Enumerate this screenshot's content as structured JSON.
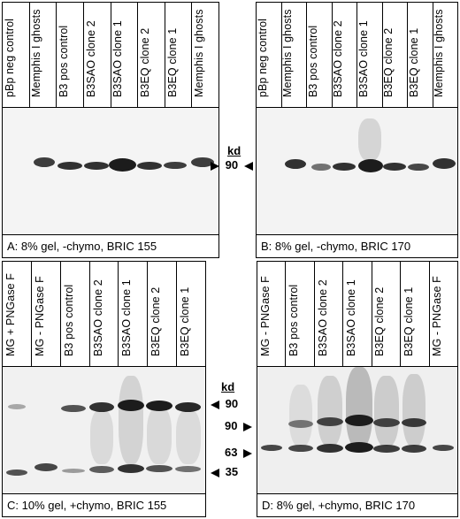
{
  "panels": {
    "A": {
      "caption": "A: 8% gel, -chymo, BRIC 155",
      "lanes": [
        "pBp neg control",
        "Memphis I ghosts",
        "B3 pos control",
        "B3SAO clone 2",
        "B3SAO clone 1",
        "B3EQ clone 2",
        "B3EQ clone 1",
        "Memphis I ghosts"
      ]
    },
    "B": {
      "caption": "B: 8% gel, -chymo, BRIC 170",
      "lanes": [
        "pBp neg control",
        "Memphis I ghosts",
        "B3 pos control",
        "B3SAO clone 2",
        "B3SAO clone 1",
        "B3EQ clone 2",
        "B3EQ clone 1",
        "Memphis I ghosts"
      ]
    },
    "C": {
      "caption": "C: 10% gel, +chymo, BRIC 155",
      "lanes": [
        "MG + PNGase F",
        "MG - PNGase F",
        "B3 pos control",
        "B3SAO clone 2",
        "B3SAO clone 1",
        "B3EQ clone 2",
        "B3EQ clone 1"
      ]
    },
    "D": {
      "caption": "D: 8% gel, +chymo, BRIC 170",
      "lanes": [
        "MG - PNGase F",
        "B3 pos control",
        "B3SAO clone 2",
        "B3SAO clone 1",
        "B3EQ clone 2",
        "B3EQ clone 1",
        "MG - PNGase F"
      ]
    }
  },
  "markers": {
    "kd_top": "kd",
    "top_90": "90",
    "kd_bottom": "kd",
    "bottom_90": "90",
    "d_90": "90",
    "d_63": "63",
    "bottom_35": "35"
  }
}
